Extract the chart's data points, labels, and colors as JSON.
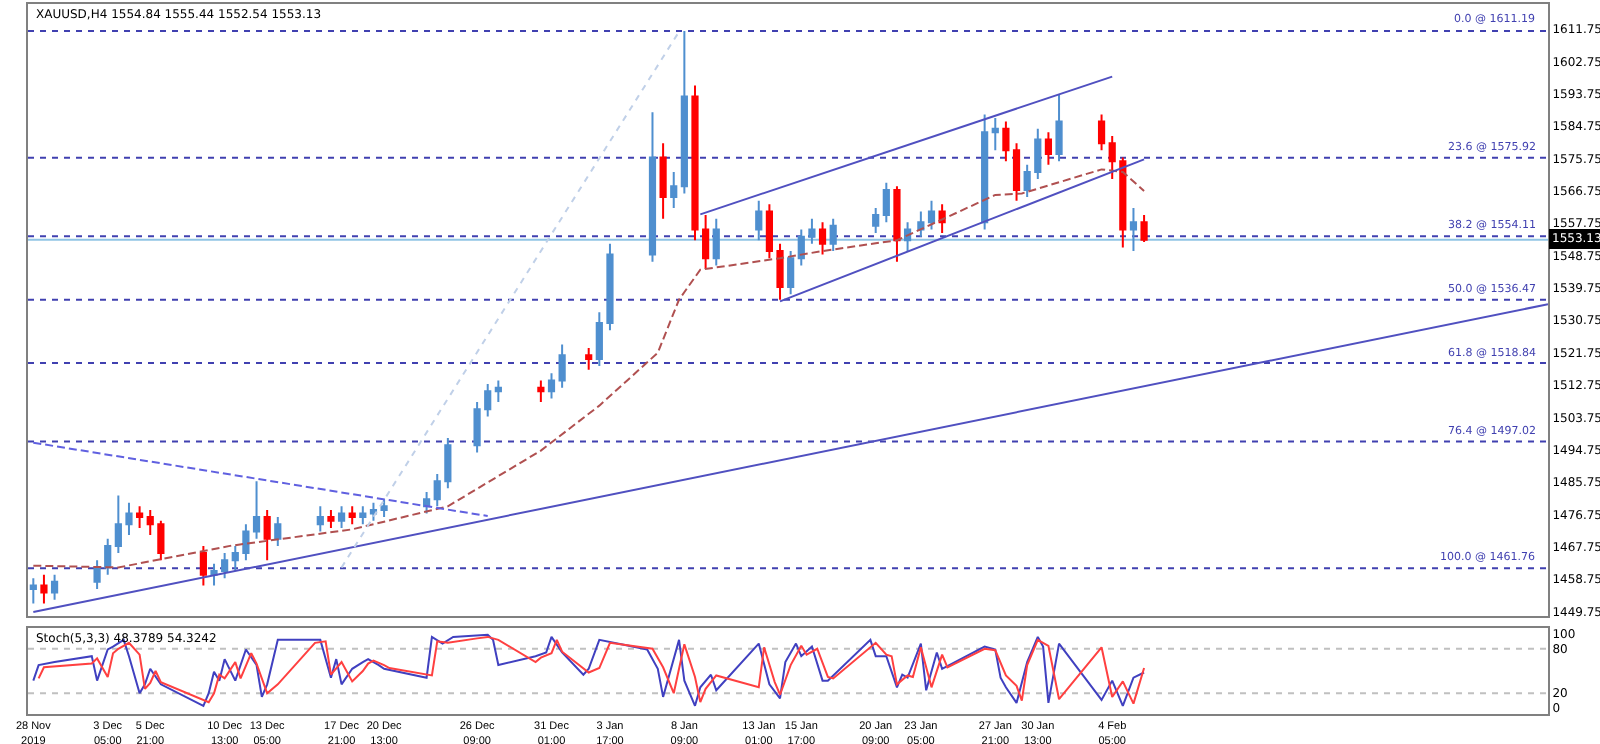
{
  "chart_data": [
    {
      "type": "candlestick",
      "title": "XAUUSD,H4 1554.84 1555.44 1552.54 1553.13",
      "x": [
        "2019-11-28T13:00",
        "2019-11-29T05:00",
        "2019-11-29T21:00",
        "2019-12-02T13:00",
        "2019-12-03T05:00",
        "2019-12-03T21:00",
        "2019-12-04T13:00",
        "2019-12-05T05:00",
        "2019-12-05T21:00",
        "2019-12-06T13:00",
        "2019-12-09T05:00",
        "2019-12-09T21:00",
        "2019-12-10T13:00",
        "2019-12-11T05:00",
        "2019-12-11T21:00",
        "2019-12-12T13:00",
        "2019-12-13T05:00",
        "2019-12-13T21:00",
        "2019-12-16T13:00",
        "2019-12-17T05:00",
        "2019-12-17T21:00",
        "2019-12-18T13:00",
        "2019-12-19T05:00",
        "2019-12-19T21:00",
        "2019-12-20T13:00",
        "2019-12-23T05:00",
        "2019-12-23T21:00",
        "2019-12-24T13:00",
        "2019-12-26T09:00",
        "2019-12-27T01:00",
        "2019-12-27T17:00",
        "2019-12-30T09:00",
        "2019-12-31T01:00",
        "2019-12-31T17:00",
        "2020-01-02T09:00",
        "2020-01-03T01:00",
        "2020-01-03T17:00",
        "2020-01-06T09:00",
        "2020-01-07T01:00",
        "2020-01-07T17:00",
        "2020-01-08T09:00",
        "2020-01-09T01:00",
        "2020-01-09T17:00",
        "2020-01-10T09:00",
        "2020-01-13T01:00",
        "2020-01-13T17:00",
        "2020-01-14T09:00",
        "2020-01-15T01:00",
        "2020-01-15T17:00",
        "2020-01-16T09:00",
        "2020-01-17T01:00",
        "2020-01-17T17:00",
        "2020-01-20T09:00",
        "2020-01-21T01:00",
        "2020-01-21T17:00",
        "2020-01-22T09:00",
        "2020-01-23T05:00",
        "2020-01-23T21:00",
        "2020-01-24T13:00",
        "2020-01-27T05:00",
        "2020-01-27T21:00",
        "2020-01-28T13:00",
        "2020-01-29T05:00",
        "2020-01-29T21:00",
        "2020-01-30T13:00",
        "2020-01-31T05:00",
        "2020-01-31T21:00",
        "2020-02-03T13:00",
        "2020-02-04T05:00",
        "2020-02-04T21:00",
        "2020-02-05T13:00",
        "2020-02-06T05:00"
      ],
      "ohlc": [
        [
          1456,
          1459,
          1452,
          1457
        ],
        [
          1457,
          1460,
          1452,
          1455
        ],
        [
          1455,
          1460,
          1453,
          1458
        ],
        [
          1458,
          1464,
          1456,
          1462
        ],
        [
          1462,
          1470,
          1460,
          1468
        ],
        [
          1468,
          1482,
          1466,
          1474
        ],
        [
          1474,
          1480,
          1471,
          1477
        ],
        [
          1477,
          1479,
          1473,
          1476
        ],
        [
          1476,
          1478,
          1471,
          1474
        ],
        [
          1474,
          1475,
          1464,
          1466
        ],
        [
          1466,
          1468,
          1457,
          1460
        ],
        [
          1460,
          1463,
          1457,
          1461
        ],
        [
          1461,
          1466,
          1459,
          1464
        ],
        [
          1464,
          1468,
          1461,
          1466
        ],
        [
          1466,
          1474,
          1464,
          1472
        ],
        [
          1472,
          1486,
          1470,
          1476
        ],
        [
          1476,
          1478,
          1464,
          1470
        ],
        [
          1470,
          1476,
          1468,
          1474
        ],
        [
          1474,
          1479,
          1472,
          1476
        ],
        [
          1476,
          1478,
          1473,
          1475
        ],
        [
          1475,
          1479,
          1473,
          1477
        ],
        [
          1477,
          1479,
          1474,
          1476
        ],
        [
          1476,
          1479,
          1474,
          1477
        ],
        [
          1477,
          1480,
          1475,
          1478
        ],
        [
          1478,
          1481,
          1476,
          1479
        ],
        [
          1479,
          1483,
          1477,
          1481
        ],
        [
          1481,
          1488,
          1479,
          1486
        ],
        [
          1486,
          1498,
          1484,
          1496
        ],
        [
          1496,
          1508,
          1494,
          1506
        ],
        [
          1506,
          1513,
          1504,
          1511
        ],
        [
          1511,
          1514,
          1508,
          1512
        ],
        [
          1512,
          1514,
          1508,
          1511
        ],
        [
          1511,
          1516,
          1509,
          1514
        ],
        [
          1514,
          1524,
          1512,
          1521
        ],
        [
          1521,
          1523,
          1517,
          1520
        ],
        [
          1520,
          1533,
          1518,
          1530
        ],
        [
          1530,
          1552,
          1528,
          1549
        ],
        [
          1549,
          1588.6,
          1547,
          1576
        ],
        [
          1576,
          1580,
          1559,
          1565
        ],
        [
          1565,
          1572,
          1562,
          1568
        ],
        [
          1568,
          1611.19,
          1566,
          1593
        ],
        [
          1593,
          1596,
          1553,
          1556
        ],
        [
          1556,
          1560,
          1545,
          1548
        ],
        [
          1548,
          1559,
          1546,
          1556
        ],
        [
          1556,
          1564,
          1553,
          1561
        ],
        [
          1561,
          1563,
          1548,
          1550
        ],
        [
          1550,
          1552,
          1536.47,
          1540
        ],
        [
          1540,
          1550,
          1538,
          1548
        ],
        [
          1548,
          1556,
          1546,
          1554
        ],
        [
          1554,
          1559,
          1552,
          1556
        ],
        [
          1556,
          1558,
          1549,
          1552
        ],
        [
          1552,
          1559,
          1550,
          1557
        ],
        [
          1557,
          1562,
          1555,
          1560
        ],
        [
          1560,
          1569,
          1558,
          1567
        ],
        [
          1567,
          1568,
          1547,
          1553
        ],
        [
          1553,
          1558,
          1550,
          1556
        ],
        [
          1556,
          1561,
          1554,
          1558
        ],
        [
          1558,
          1564,
          1556,
          1561
        ],
        [
          1561,
          1563,
          1555,
          1558
        ],
        [
          1558,
          1588,
          1556,
          1583
        ],
        [
          1583,
          1587,
          1578,
          1584
        ],
        [
          1584,
          1586,
          1575,
          1578
        ],
        [
          1578,
          1580,
          1564,
          1567
        ],
        [
          1567,
          1574,
          1565,
          1572
        ],
        [
          1572,
          1584,
          1570,
          1581
        ],
        [
          1581,
          1583,
          1574,
          1577
        ],
        [
          1577,
          1593.5,
          1575,
          1586
        ],
        [
          1586,
          1588,
          1578,
          1580
        ],
        [
          1580,
          1582,
          1570,
          1575
        ],
        [
          1575,
          1576,
          1551,
          1556
        ],
        [
          1556,
          1562,
          1550,
          1558
        ],
        [
          1558,
          1560,
          1552.54,
          1553.13
        ]
      ],
      "colors": [
        "#4f8fcf",
        "#ff0000",
        "#4f8fcf",
        "#4f8fcf",
        "#4f8fcf",
        "#4f8fcf",
        "#4f8fcf",
        "#ff0000",
        "#ff0000",
        "#ff0000",
        "#ff0000",
        "#4f8fcf",
        "#4f8fcf",
        "#4f8fcf",
        "#4f8fcf",
        "#4f8fcf",
        "#ff0000",
        "#4f8fcf",
        "#4f8fcf",
        "#ff0000",
        "#4f8fcf",
        "#ff0000",
        "#4f8fcf",
        "#4f8fcf",
        "#4f8fcf",
        "#4f8fcf",
        "#4f8fcf",
        "#4f8fcf",
        "#4f8fcf",
        "#4f8fcf",
        "#4f8fcf",
        "#ff0000",
        "#4f8fcf",
        "#4f8fcf",
        "#ff0000",
        "#4f8fcf",
        "#4f8fcf",
        "#4f8fcf",
        "#ff0000",
        "#4f8fcf",
        "#4f8fcf",
        "#ff0000",
        "#ff0000",
        "#4f8fcf",
        "#4f8fcf",
        "#ff0000",
        "#ff0000",
        "#4f8fcf",
        "#4f8fcf",
        "#4f8fcf",
        "#ff0000",
        "#4f8fcf",
        "#4f8fcf",
        "#4f8fcf",
        "#ff0000",
        "#4f8fcf",
        "#4f8fcf",
        "#4f8fcf",
        "#ff0000",
        "#4f8fcf",
        "#4f8fcf",
        "#ff0000",
        "#ff0000",
        "#4f8fcf",
        "#4f8fcf",
        "#ff0000",
        "#4f8fcf",
        "#ff0000",
        "#ff0000",
        "#ff0000",
        "#4f8fcf",
        "#ff0000"
      ],
      "series": [
        {
          "type": "line",
          "x": [
            "2019-11-28T13:00",
            "2019-12-03T21:00",
            "2019-12-10T21:00",
            "2019-12-18T13:00",
            "2019-12-24T13:00",
            "2019-12-30T09:00",
            "2020-01-03T01:00",
            "2020-01-06T17:00",
            "2020-01-08T01:00",
            "2020-01-09T09:00",
            "2020-01-14T09:00",
            "2020-01-17T01:00",
            "2020-01-21T17:00",
            "2020-01-27T21:00",
            "2020-01-29T13:00",
            "2020-02-03T13:00",
            "2020-02-04T21:00",
            "2020-02-06T05:00"
          ],
          "values": [
            1462.5,
            1462,
            1468,
            1472.6,
            1479,
            1494.5,
            1507,
            1521.7,
            1536.5,
            1544.8,
            1548,
            1550,
            1553,
            1565.6,
            1566,
            1572.7,
            1572,
            1566.7
          ],
          "color": "#b05050",
          "line_style": "dashed"
        },
        {
          "type": "line",
          "x": [
            "2019-11-28T13:00",
            "2020-03-02T13:00"
          ],
          "values": [
            1449.6,
            1535.2
          ],
          "color": "#5050c0",
          "line_style": "solid"
        },
        {
          "type": "line",
          "x": [
            "2019-11-28T13:00",
            "2019-12-27T01:00"
          ],
          "values": [
            1496.7,
            1476.3
          ],
          "color": "#6060e0",
          "line_style": "dashed"
        },
        {
          "type": "line",
          "x": [
            "2020-01-09T09:00",
            "2020-02-04T05:00"
          ],
          "values": [
            1560.2,
            1598.5
          ],
          "color": "#5050c0",
          "line_style": "solid"
        },
        {
          "type": "line",
          "x": [
            "2020-01-14T09:00",
            "2020-02-06T05:00"
          ],
          "values": [
            1536,
            1575.5
          ],
          "color": "#5050c0",
          "line_style": "solid"
        },
        {
          "type": "line",
          "x": [
            "2019-12-17T21:00",
            "2020-01-08T01:00"
          ],
          "values": [
            1462,
            1611
          ],
          "color": "#c0d0e8",
          "line_style": "dotted"
        }
      ],
      "ref_lines": [
        {
          "axis": "y",
          "value": 1611.19,
          "label": "0.0 @ 1611.19",
          "color": "#4040b0",
          "line_style": "dotted"
        },
        {
          "axis": "y",
          "value": 1575.92,
          "label": "23.6 @ 1575.92",
          "color": "#4040b0",
          "line_style": "dotted"
        },
        {
          "axis": "y",
          "value": 1554.11,
          "label": "38.2 @ 1554.11",
          "color": "#4040b0",
          "line_style": "dotted"
        },
        {
          "axis": "y",
          "value": 1536.47,
          "label": "50.0 @ 1536.47",
          "color": "#4040b0",
          "line_style": "dotted"
        },
        {
          "axis": "y",
          "value": 1518.84,
          "label": "61.8 @ 1518.84",
          "color": "#4040b0",
          "line_style": "dotted"
        },
        {
          "axis": "y",
          "value": 1497.02,
          "label": "76.4 @ 1497.02",
          "color": "#4040b0",
          "line_style": "dotted"
        },
        {
          "axis": "y",
          "value": 1461.76,
          "label": "100.0 @ 1461.76",
          "color": "#4040b0",
          "line_style": "dotted"
        },
        {
          "axis": "y",
          "value": 1553.13,
          "label": "1553.13",
          "color": "#90c4e4",
          "line_style": "solid"
        }
      ],
      "xlim": [
        "2019-11-28T05:00",
        "2020-03-02T13:00"
      ],
      "ylim": [
        1448.5,
        1618.7
      ],
      "yticks": [
        1449.75,
        1458.75,
        1467.75,
        1476.75,
        1485.75,
        1494.75,
        1503.75,
        1512.75,
        1521.75,
        1530.75,
        1539.75,
        1548.75,
        1557.75,
        1566.75,
        1575.75,
        1584.75,
        1593.75,
        1602.75,
        1611.75
      ],
      "tick_labels": "y"
    },
    {
      "type": "line",
      "title": "Stoch(5,3,3) 48.3789 54.3242",
      "series": [
        {
          "x": [
            "2019-11-28T13:00",
            "2019-11-28T21:00",
            "2019-11-29T21:00",
            "2019-12-02T05:00",
            "2019-12-02T13:00",
            "2019-12-03T05:00",
            "2019-12-03T13:00",
            "2019-12-04T05:00",
            "2019-12-04T13:00",
            "2019-12-05T05:00",
            "2019-12-05T13:00",
            "2019-12-05T21:00",
            "2019-12-06T13:00",
            "2019-12-09T05:00",
            "2019-12-09T13:00",
            "2019-12-09T21:00",
            "2019-12-10T05:00",
            "2019-12-10T13:00",
            "2019-12-11T05:00",
            "2019-12-11T21:00",
            "2019-12-12T13:00",
            "2019-12-12T21:00",
            "2019-12-13T05:00",
            "2019-12-13T21:00",
            "2019-12-16T13:00",
            "2019-12-17T05:00",
            "2019-12-17T13:00",
            "2019-12-17T21:00",
            "2019-12-18T13:00",
            "2019-12-19T05:00",
            "2019-12-19T13:00",
            "2019-12-20T05:00",
            "2019-12-20T13:00",
            "2019-12-23T05:00",
            "2019-12-23T13:00",
            "2019-12-24T05:00",
            "2019-12-24T21:00",
            "2019-12-27T01:00",
            "2019-12-27T09:00",
            "2019-12-27T17:00",
            "2019-12-30T01:00",
            "2019-12-30T17:00",
            "2019-12-31T01:00",
            "2019-12-31T17:00",
            "2020-01-02T01:00",
            "2020-01-02T09:00",
            "2020-01-03T01:00",
            "2020-01-06T01:00",
            "2020-01-06T17:00",
            "2020-01-07T01:00",
            "2020-01-08T01:00",
            "2020-01-08T09:00",
            "2020-01-09T01:00",
            "2020-01-09T09:00",
            "2020-01-10T01:00",
            "2020-01-10T09:00",
            "2020-01-13T01:00",
            "2020-01-13T17:00",
            "2020-01-14T09:00",
            "2020-01-14T17:00",
            "2020-01-15T09:00",
            "2020-01-15T17:00",
            "2020-01-16T09:00",
            "2020-01-17T01:00",
            "2020-01-17T09:00",
            "2020-01-20T01:00",
            "2020-01-20T09:00",
            "2020-01-21T01:00",
            "2020-01-21T17:00",
            "2020-01-22T01:00",
            "2020-01-22T09:00",
            "2020-01-23T05:00",
            "2020-01-23T13:00",
            "2020-01-24T05:00",
            "2020-01-24T13:00",
            "2020-01-27T05:00",
            "2020-01-27T21:00",
            "2020-01-28T05:00",
            "2020-01-28T13:00",
            "2020-01-29T05:00",
            "2020-01-29T21:00",
            "2020-01-30T13:00",
            "2020-01-30T21:00",
            "2020-01-31T05:00",
            "2020-01-31T21:00",
            "2020-02-03T13:00",
            "2020-02-04T05:00",
            "2020-02-04T21:00",
            "2020-02-05T13:00",
            "2020-02-06T05:00"
          ],
          "values": [
            37,
            58,
            62,
            70,
            37,
            79,
            83,
            92,
            70,
            20,
            32,
            53,
            32,
            3,
            20,
            49,
            37,
            66,
            37,
            79,
            58,
            15,
            32,
            92,
            92,
            41,
            66,
            32,
            53,
            62,
            66,
            58,
            53,
            41,
            96,
            87,
            96,
            99,
            92,
            58,
            70,
            75,
            96,
            75,
            45,
            53,
            92,
            79,
            53,
            15,
            92,
            37,
            3,
            28,
            45,
            24,
            87,
            32,
            13,
            62,
            87,
            70,
            83,
            37,
            37,
            92,
            70,
            70,
            28,
            45,
            41,
            87,
            24,
            75,
            53,
            83,
            79,
            41,
            28,
            7,
            62,
            96,
            83,
            7,
            87,
            11,
            37,
            3,
            41,
            48
          ],
          "color": "#4040c0"
        },
        {
          "x": [
            "2019-11-28T21:00",
            "2019-11-29T05:00",
            "2019-12-02T05:00",
            "2019-12-02T13:00",
            "2019-12-03T05:00",
            "2019-12-03T13:00",
            "2019-12-03T21:00",
            "2019-12-04T13:00",
            "2019-12-05T05:00",
            "2019-12-05T13:00",
            "2019-12-05T21:00",
            "2019-12-06T05:00",
            "2019-12-06T13:00",
            "2019-12-09T13:00",
            "2019-12-09T21:00",
            "2019-12-10T05:00",
            "2019-12-10T13:00",
            "2019-12-11T05:00",
            "2019-12-11T13:00",
            "2019-12-12T05:00",
            "2019-12-12T13:00",
            "2019-12-13T05:00",
            "2019-12-13T21:00",
            "2019-12-16T05:00",
            "2019-12-16T21:00",
            "2019-12-17T05:00",
            "2019-12-17T21:00",
            "2019-12-18T13:00",
            "2019-12-19T05:00",
            "2019-12-19T13:00",
            "2019-12-19T21:00",
            "2019-12-20T13:00",
            "2019-12-20T21:00",
            "2019-12-23T13:00",
            "2019-12-23T21:00",
            "2019-12-24T13:00",
            "2019-12-26T09:00",
            "2019-12-27T01:00",
            "2019-12-27T17:00",
            "2019-12-30T01:00",
            "2019-12-30T09:00",
            "2019-12-31T01:00",
            "2019-12-31T09:00",
            "2019-12-31T17:00",
            "2020-01-02T09:00",
            "2020-01-03T01:00",
            "2020-01-03T17:00",
            "2020-01-06T09:00",
            "2020-01-07T01:00",
            "2020-01-07T17:00",
            "2020-01-08T09:00",
            "2020-01-09T01:00",
            "2020-01-09T09:00",
            "2020-01-09T17:00",
            "2020-01-10T09:00",
            "2020-01-13T01:00",
            "2020-01-13T09:00",
            "2020-01-14T01:00",
            "2020-01-14T09:00",
            "2020-01-15T01:00",
            "2020-01-15T17:00",
            "2020-01-16T01:00",
            "2020-01-16T17:00",
            "2020-01-17T09:00",
            "2020-01-17T17:00",
            "2020-01-20T09:00",
            "2020-01-21T01:00",
            "2020-01-21T09:00",
            "2020-01-21T17:00",
            "2020-01-22T09:00",
            "2020-01-22T17:00",
            "2020-01-23T05:00",
            "2020-01-23T21:00",
            "2020-01-24T13:00",
            "2020-01-24T21:00",
            "2020-01-27T05:00",
            "2020-01-27T21:00",
            "2020-01-28T13:00",
            "2020-01-29T05:00",
            "2020-01-29T13:00",
            "2020-01-29T21:00",
            "2020-01-30T13:00",
            "2020-01-31T05:00",
            "2020-01-31T21:00",
            "2020-02-03T13:00",
            "2020-02-04T05:00",
            "2020-02-04T21:00",
            "2020-02-05T13:00",
            "2020-02-06T05:00"
          ],
          "values": [
            40,
            55,
            60,
            67,
            42,
            74,
            80,
            88,
            72,
            26,
            34,
            50,
            35,
            8,
            20,
            45,
            40,
            62,
            40,
            74,
            60,
            20,
            32,
            88,
            90,
            45,
            62,
            36,
            50,
            60,
            64,
            58,
            54,
            44,
            90,
            88,
            94,
            96,
            92,
            62,
            68,
            74,
            92,
            76,
            48,
            54,
            88,
            80,
            55,
            20,
            86,
            42,
            8,
            26,
            44,
            28,
            82,
            35,
            18,
            58,
            84,
            72,
            80,
            42,
            40,
            88,
            72,
            70,
            32,
            44,
            42,
            82,
            28,
            72,
            55,
            80,
            78,
            44,
            30,
            10,
            58,
            92,
            84,
            12,
            82,
            15,
            36,
            6,
            54
          ],
          "color": "#ff4040"
        }
      ],
      "ref_lines": [
        {
          "axis": "y",
          "value": 20,
          "color": "#c0c0c0",
          "line_style": "dotted"
        },
        {
          "axis": "y",
          "value": 80,
          "color": "#c0c0c0",
          "line_style": "dotted"
        }
      ],
      "xlim": [
        "2019-11-28T05:00",
        "2020-03-02T13:00"
      ],
      "ylim": [
        -8,
        108
      ],
      "yticks": [
        0,
        20,
        80,
        100
      ],
      "xticks": [
        {
          "value": "2019-11-28T13:00",
          "label": "28 Nov 2019"
        },
        {
          "value": "2019-12-03T05:00",
          "label": "3 Dec 05:00"
        },
        {
          "value": "2019-12-05T21:00",
          "label": "5 Dec 21:00"
        },
        {
          "value": "2019-12-10T13:00",
          "label": "10 Dec 13:00"
        },
        {
          "value": "2019-12-13T05:00",
          "label": "13 Dec 05:00"
        },
        {
          "value": "2019-12-17T21:00",
          "label": "17 Dec 21:00"
        },
        {
          "value": "2019-12-20T13:00",
          "label": "20 Dec 13:00"
        },
        {
          "value": "2019-12-26T09:00",
          "label": "26 Dec 09:00"
        },
        {
          "value": "2019-12-31T01:00",
          "label": "31 Dec 01:00"
        },
        {
          "value": "2020-01-03T17:00",
          "label": "3 Jan 17:00"
        },
        {
          "value": "2020-01-08T09:00",
          "label": "8 Jan 09:00"
        },
        {
          "value": "2020-01-13T01:00",
          "label": "13 Jan 01:00"
        },
        {
          "value": "2020-01-15T17:00",
          "label": "15 Jan 17:00"
        },
        {
          "value": "2020-01-20T09:00",
          "label": "20 Jan 09:00"
        },
        {
          "value": "2020-01-23T05:00",
          "label": "23 Jan 05:00"
        },
        {
          "value": "2020-01-27T21:00",
          "label": "27 Jan 21:00"
        },
        {
          "value": "2020-01-30T13:00",
          "label": "30 Jan 13:00"
        },
        {
          "value": "2020-02-04T05:00",
          "label": "4 Feb 05:00"
        }
      ]
    }
  ]
}
